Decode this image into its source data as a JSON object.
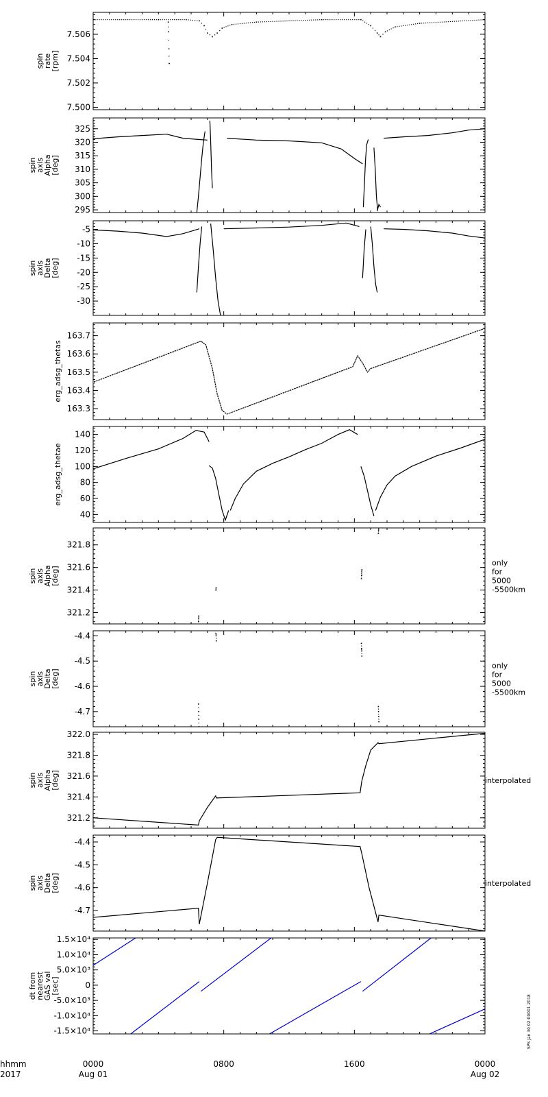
{
  "chart_data": {
    "type": "line",
    "time_axis": {
      "label_line1": "hhmm",
      "label_line2": "2017",
      "range_hours": [
        0,
        24
      ],
      "ticks": [
        {
          "hour": 0,
          "line1": "0000",
          "line2": "Aug 01"
        },
        {
          "hour": 8,
          "line1": "0800",
          "line2": ""
        },
        {
          "hour": 16,
          "line1": "1600",
          "line2": ""
        },
        {
          "hour": 24,
          "line1": "0000",
          "line2": "Aug 02"
        }
      ]
    },
    "stamp": "SPS Jan 30 02:00001 2018",
    "panels": [
      {
        "ylabel": [
          "spin",
          "rate",
          "[rpm]"
        ],
        "side_label": [],
        "ylim": [
          7.4998,
          7.5078
        ],
        "yticks": [
          "7.500",
          "7.502",
          "7.504",
          "7.506"
        ],
        "ytick_values": [
          7.5,
          7.502,
          7.504,
          7.506
        ],
        "style": "dots",
        "color": "#000000",
        "series": [
          {
            "x": [
              0,
              4,
              5.7,
              6.5,
              6.8,
              7.0,
              7.3,
              7.6,
              7.9,
              8.5,
              10,
              14,
              16.4,
              17.0,
              17.4,
              17.6,
              17.9,
              18.5,
              20,
              24
            ],
            "y": [
              7.5072,
              7.5072,
              7.5072,
              7.5071,
              7.5067,
              7.5061,
              7.5058,
              7.5061,
              7.5065,
              7.5068,
              7.507,
              7.5072,
              7.5072,
              7.5067,
              7.5061,
              7.5058,
              7.5062,
              7.5066,
              7.5069,
              7.5072
            ]
          },
          {
            "x": [
              4.6,
              4.62,
              4.64,
              4.66
            ],
            "y": [
              7.507,
              7.5062,
              7.5048,
              7.5036
            ]
          }
        ]
      },
      {
        "ylabel": [
          "spin",
          "axis",
          "Alpha",
          "[deg]"
        ],
        "side_label": [],
        "ylim": [
          294,
          329
        ],
        "yticks": [
          "295",
          "300",
          "305",
          "310",
          "315",
          "320",
          "325"
        ],
        "ytick_values": [
          295,
          300,
          305,
          310,
          315,
          320,
          325
        ],
        "style": "noisy",
        "color": "#000000",
        "series": [
          {
            "x": [
              0,
              1.5,
              3,
              4.5,
              5.5,
              6.5,
              7.0
            ],
            "y": [
              321.3,
              322,
              322.5,
              323,
              321.5,
              321,
              320.8
            ]
          },
          {
            "x": [
              8.2,
              10,
              12,
              14,
              15.2,
              16.0,
              16.5
            ],
            "y": [
              321.5,
              320.8,
              320.5,
              319.8,
              317.5,
              314,
              312
            ]
          },
          {
            "x": [
              17.8,
              19,
              20.5,
              22,
              23,
              24
            ],
            "y": [
              321.5,
              322,
              322.5,
              323.5,
              324.5,
              325
            ]
          },
          {
            "x": [
              6.35,
              6.45,
              6.55,
              6.65,
              6.75,
              6.85
            ],
            "y": [
              294,
              300,
              307,
              314,
              320,
              324
            ]
          },
          {
            "x": [
              7.15,
              7.2,
              7.25,
              7.3
            ],
            "y": [
              328,
              320,
              310,
              303
            ]
          },
          {
            "x": [
              16.55,
              16.62,
              16.68,
              16.75,
              16.85
            ],
            "y": [
              296,
              305,
              313,
              319,
              321
            ]
          },
          {
            "x": [
              17.2,
              17.28,
              17.35,
              17.42
            ],
            "y": [
              318,
              310,
              300,
              295
            ]
          },
          {
            "x": [
              17.4,
              17.5,
              17.6
            ],
            "y": [
              294.5,
              297,
              296
            ]
          }
        ]
      },
      {
        "ylabel": [
          "spin",
          "axis",
          "Delta",
          "[deg]"
        ],
        "side_label": [],
        "ylim": [
          -35,
          -2
        ],
        "yticks": [
          "-30",
          "-25",
          "-20",
          "-15",
          "-10",
          "-5"
        ],
        "ytick_values": [
          -30,
          -25,
          -20,
          -15,
          -10,
          -5
        ],
        "style": "noisy",
        "color": "#000000",
        "series": [
          {
            "x": [
              0,
              1.5,
              3,
              4.5,
              5.5,
              6.5
            ],
            "y": [
              -5.2,
              -5.6,
              -6.3,
              -7.5,
              -6.5,
              -4.8
            ]
          },
          {
            "x": [
              8.0,
              10,
              12,
              14,
              15.5,
              16.3
            ],
            "y": [
              -4.8,
              -4.5,
              -4.2,
              -3.6,
              -2.8,
              -4.0
            ]
          },
          {
            "x": [
              17.8,
              19,
              20.5,
              22,
              23,
              24
            ],
            "y": [
              -4.8,
              -5.0,
              -5.5,
              -6.3,
              -7.3,
              -8.0
            ]
          },
          {
            "x": [
              6.35,
              6.45,
              6.55,
              6.65
            ],
            "y": [
              -27,
              -18,
              -10,
              -4
            ]
          },
          {
            "x": [
              7.2,
              7.35,
              7.5,
              7.65,
              7.8
            ],
            "y": [
              -3,
              -12,
              -22,
              -30,
              -35
            ]
          },
          {
            "x": [
              16.5,
              16.6,
              16.7
            ],
            "y": [
              -22,
              -12,
              -5
            ]
          },
          {
            "x": [
              17.0,
              17.1,
              17.2,
              17.3,
              17.4
            ],
            "y": [
              -4,
              -10,
              -18,
              -24,
              -27
            ]
          }
        ]
      },
      {
        "ylabel": [
          "erg_adsg_thetas"
        ],
        "side_label": [],
        "ylim": [
          163.24,
          163.77
        ],
        "yticks": [
          "163.3",
          "163.4",
          "163.5",
          "163.6",
          "163.7"
        ],
        "ytick_values": [
          163.3,
          163.4,
          163.5,
          163.6,
          163.7
        ],
        "style": "sawtooth",
        "color": "#000000",
        "series": [
          {
            "x": [
              0,
              6.6,
              6.9,
              7.3,
              7.6,
              7.9,
              8.2,
              15.9,
              16.2,
              16.5,
              16.8,
              17.0,
              24
            ],
            "y": [
              163.445,
              163.67,
              163.65,
              163.52,
              163.38,
              163.29,
              163.27,
              163.53,
              163.59,
              163.55,
              163.5,
              163.52,
              163.74
            ]
          }
        ]
      },
      {
        "ylabel": [
          "erg_adsg_thetae"
        ],
        "side_label": [],
        "ylim": [
          30,
          150
        ],
        "yticks": [
          "40",
          "60",
          "80",
          "100",
          "120",
          "140"
        ],
        "ytick_values": [
          40,
          60,
          80,
          100,
          120,
          140
        ],
        "style": "line",
        "color": "#000000",
        "series": [
          {
            "x": [
              0,
              2,
              4,
              5.5,
              6.3,
              6.8,
              7.1
            ],
            "y": [
              97,
              110,
              122,
              135,
              145,
              143,
              131
            ]
          },
          {
            "x": [
              7.1,
              7.3,
              7.5,
              7.7,
              7.9,
              8.1,
              8.3
            ],
            "y": [
              101,
              98,
              85,
              65,
              45,
              33,
              45
            ]
          },
          {
            "x": [
              8.4,
              8.7,
              9.2,
              10,
              11,
              12,
              13,
              14,
              15,
              15.7,
              16.2
            ],
            "y": [
              45,
              60,
              78,
              94,
              104,
              112,
              121,
              129,
              140,
              146,
              140
            ]
          },
          {
            "x": [
              16.4,
              16.6,
              16.8,
              17.0,
              17.2
            ],
            "y": [
              100,
              88,
              70,
              52,
              38
            ]
          },
          {
            "x": [
              17.3,
              17.6,
              18.0,
              18.5,
              19.5,
              21,
              22.5,
              24
            ],
            "y": [
              45,
              62,
              77,
              88,
              100,
              113,
              123,
              134
            ]
          }
        ]
      },
      {
        "ylabel": [
          "spin",
          "axis",
          "Alpha",
          "[deg]"
        ],
        "side_label": [
          "only",
          "for",
          "5000",
          "-5500km"
        ],
        "ylim": [
          321.1,
          321.95
        ],
        "yticks": [
          "321.2",
          "321.4",
          "321.6",
          "321.8"
        ],
        "ytick_values": [
          321.2,
          321.4,
          321.6,
          321.8
        ],
        "style": "dots",
        "color": "#000000",
        "series": [
          {
            "x": [
              6.45,
              6.46,
              6.47
            ],
            "y": [
              321.12,
              321.15,
              321.17
            ]
          },
          {
            "x": [
              7.52,
              7.53
            ],
            "y": [
              321.4,
              321.42
            ]
          },
          {
            "x": [
              16.43,
              16.44,
              16.45,
              16.46
            ],
            "y": [
              321.5,
              321.53,
              321.56,
              321.58
            ]
          },
          {
            "x": [
              17.47,
              17.48,
              17.49
            ],
            "y": [
              321.9,
              321.93,
              321.95
            ]
          }
        ]
      },
      {
        "ylabel": [
          "spin",
          "axis",
          "Delta",
          "[deg]"
        ],
        "side_label": [
          "only",
          "for",
          "5000",
          "-5500km"
        ],
        "ylim": [
          -4.76,
          -4.38
        ],
        "yticks": [
          "-4.7",
          "-4.6",
          "-4.5",
          "-4.4"
        ],
        "ytick_values": [
          -4.7,
          -4.6,
          -4.5,
          -4.4
        ],
        "style": "dots",
        "color": "#000000",
        "series": [
          {
            "x": [
              6.45,
              6.46,
              6.47,
              6.48
            ],
            "y": [
              -4.67,
              -4.7,
              -4.73,
              -4.76
            ]
          },
          {
            "x": [
              7.52,
              7.53,
              7.54
            ],
            "y": [
              -4.39,
              -4.4,
              -4.42
            ]
          },
          {
            "x": [
              16.43,
              16.44,
              16.45,
              16.46
            ],
            "y": [
              -4.43,
              -4.45,
              -4.46,
              -4.48
            ]
          },
          {
            "x": [
              17.47,
              17.48,
              17.49,
              17.5
            ],
            "y": [
              -4.68,
              -4.7,
              -4.72,
              -4.74
            ]
          }
        ]
      },
      {
        "ylabel": [
          "spin",
          "axis",
          "Alpha",
          "[deg]"
        ],
        "side_label": [
          "interpolated"
        ],
        "ylim": [
          321.1,
          322.02
        ],
        "yticks": [
          "321.2",
          "321.4",
          "321.6",
          "321.8",
          "322.0"
        ],
        "ytick_values": [
          321.2,
          321.4,
          321.6,
          321.8,
          322.0
        ],
        "style": "line",
        "color": "#000000",
        "series": [
          {
            "x": [
              0,
              6.45,
              6.5,
              7.0,
              7.5,
              7.55,
              16.35,
              16.45,
              16.7,
              17.0,
              17.45,
              17.5,
              24
            ],
            "y": [
              321.2,
              321.13,
              321.17,
              321.3,
              321.41,
              321.39,
              321.44,
              321.55,
              321.7,
              321.85,
              321.92,
              321.91,
              322.01
            ]
          }
        ]
      },
      {
        "ylabel": [
          "spin",
          "axis",
          "Delta",
          "[deg]"
        ],
        "side_label": [
          "interpolated"
        ],
        "ylim": [
          -4.79,
          -4.37
        ],
        "yticks": [
          "-4.7",
          "-4.6",
          "-4.5",
          "-4.4"
        ],
        "ytick_values": [
          -4.7,
          -4.6,
          -4.5,
          -4.4
        ],
        "style": "line",
        "color": "#000000",
        "series": [
          {
            "x": [
              0,
              6.45,
              6.5,
              7.0,
              7.5,
              7.6,
              16.35,
              16.45,
              16.9,
              17.45,
              17.5,
              24
            ],
            "y": [
              -4.73,
              -4.69,
              -4.76,
              -4.58,
              -4.39,
              -4.38,
              -4.42,
              -4.45,
              -4.6,
              -4.75,
              -4.72,
              -4.79
            ]
          }
        ]
      },
      {
        "ylabel": [
          "dt from",
          "nearest",
          "GAS val",
          "[sec]"
        ],
        "side_label": [],
        "ylim": [
          -16000,
          15500
        ],
        "yticks": [
          "-1.5×10⁴",
          "-1.0×10⁴",
          "-5.0×10³",
          "0",
          "5.0×10³",
          "1.0×10⁴",
          "1.5×10⁴"
        ],
        "ytick_values": [
          -15000,
          -10000,
          -5000,
          0,
          5000,
          10000,
          15000
        ],
        "style": "line",
        "color": "#0000cc",
        "series": [
          {
            "x": [
              0,
              2.6
            ],
            "y": [
              6500,
              15500
            ]
          },
          {
            "x": [
              2.3,
              6.5
            ],
            "y": [
              -16000,
              1200
            ]
          },
          {
            "x": [
              6.6,
              10.9
            ],
            "y": [
              -2000,
              15500
            ]
          },
          {
            "x": [
              10.8,
              16.4
            ],
            "y": [
              -16000,
              1200
            ]
          },
          {
            "x": [
              16.5,
              20.7
            ],
            "y": [
              -2000,
              15500
            ]
          },
          {
            "x": [
              20.6,
              24
            ],
            "y": [
              -16000,
              -7800
            ]
          }
        ]
      }
    ]
  }
}
